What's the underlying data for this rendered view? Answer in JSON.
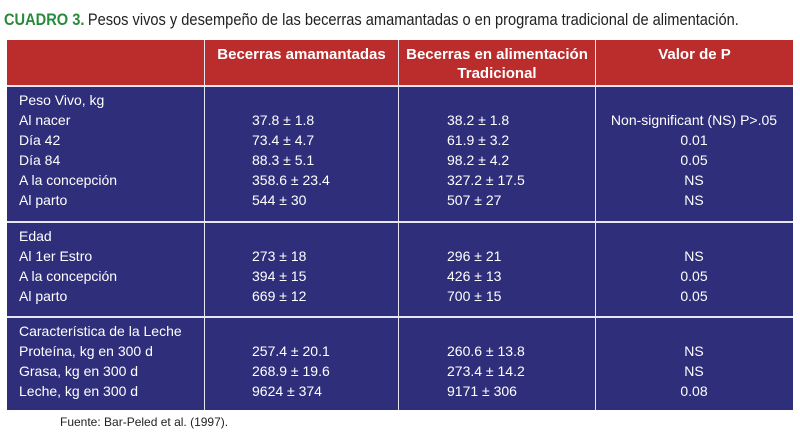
{
  "caption": {
    "label": "CUADRO 3.",
    "text": "Pesos vivos y desempeño de las becerras amamantadas o en programa tradicional de alimentación."
  },
  "columns": {
    "c1": "Becerras amamantadas",
    "c2_line1": "Becerras en alimentación",
    "c2_line2": "Tradicional",
    "c3": "Valor de P"
  },
  "sections": [
    {
      "title": "Peso Vivo, kg",
      "rows": [
        {
          "label": "Al nacer",
          "a": "37.8 ± 1.8",
          "b": "38.2 ± 1.8",
          "p": "Non-significant (NS) P>.05"
        },
        {
          "label": "Día 42",
          "a": "73.4 ± 4.7",
          "b": "61.9 ± 3.2",
          "p": "0.01"
        },
        {
          "label": "Día 84",
          "a": "88.3 ± 5.1",
          "b": "98.2 ± 4.2",
          "p": "0.05"
        },
        {
          "label": "A la concepción",
          "a": "358.6 ± 23.4",
          "b": "327.2 ± 17.5",
          "p": "NS"
        },
        {
          "label": "Al parto",
          "a": "544 ± 30",
          "b": "507 ± 27",
          "p": "NS"
        }
      ]
    },
    {
      "title": "Edad",
      "rows": [
        {
          "label": "Al 1er Estro",
          "a": "273 ± 18",
          "b": "296 ± 21",
          "p": "NS"
        },
        {
          "label": "A la concepción",
          "a": "394 ± 15",
          "b": "426 ± 13",
          "p": "0.05"
        },
        {
          "label": "Al parto",
          "a": "669 ± 12",
          "b": "700 ± 15",
          "p": "0.05"
        }
      ]
    },
    {
      "title": "Característica de la Leche",
      "rows": [
        {
          "label": "Proteína, kg en 300 d",
          "a": "257.4 ± 20.1",
          "b": "260.6 ± 13.8",
          "p": "NS"
        },
        {
          "label": "Grasa, kg en 300 d",
          "a": "268.9 ± 19.6",
          "b": "273.4 ± 14.2",
          "p": "NS"
        },
        {
          "label": "Leche, kg en 300 d",
          "a": "9624 ± 374",
          "b": "9171 ± 306",
          "p": "0.08"
        }
      ]
    }
  ],
  "source": "Fuente: Bar-Peled et al. (1997)."
}
